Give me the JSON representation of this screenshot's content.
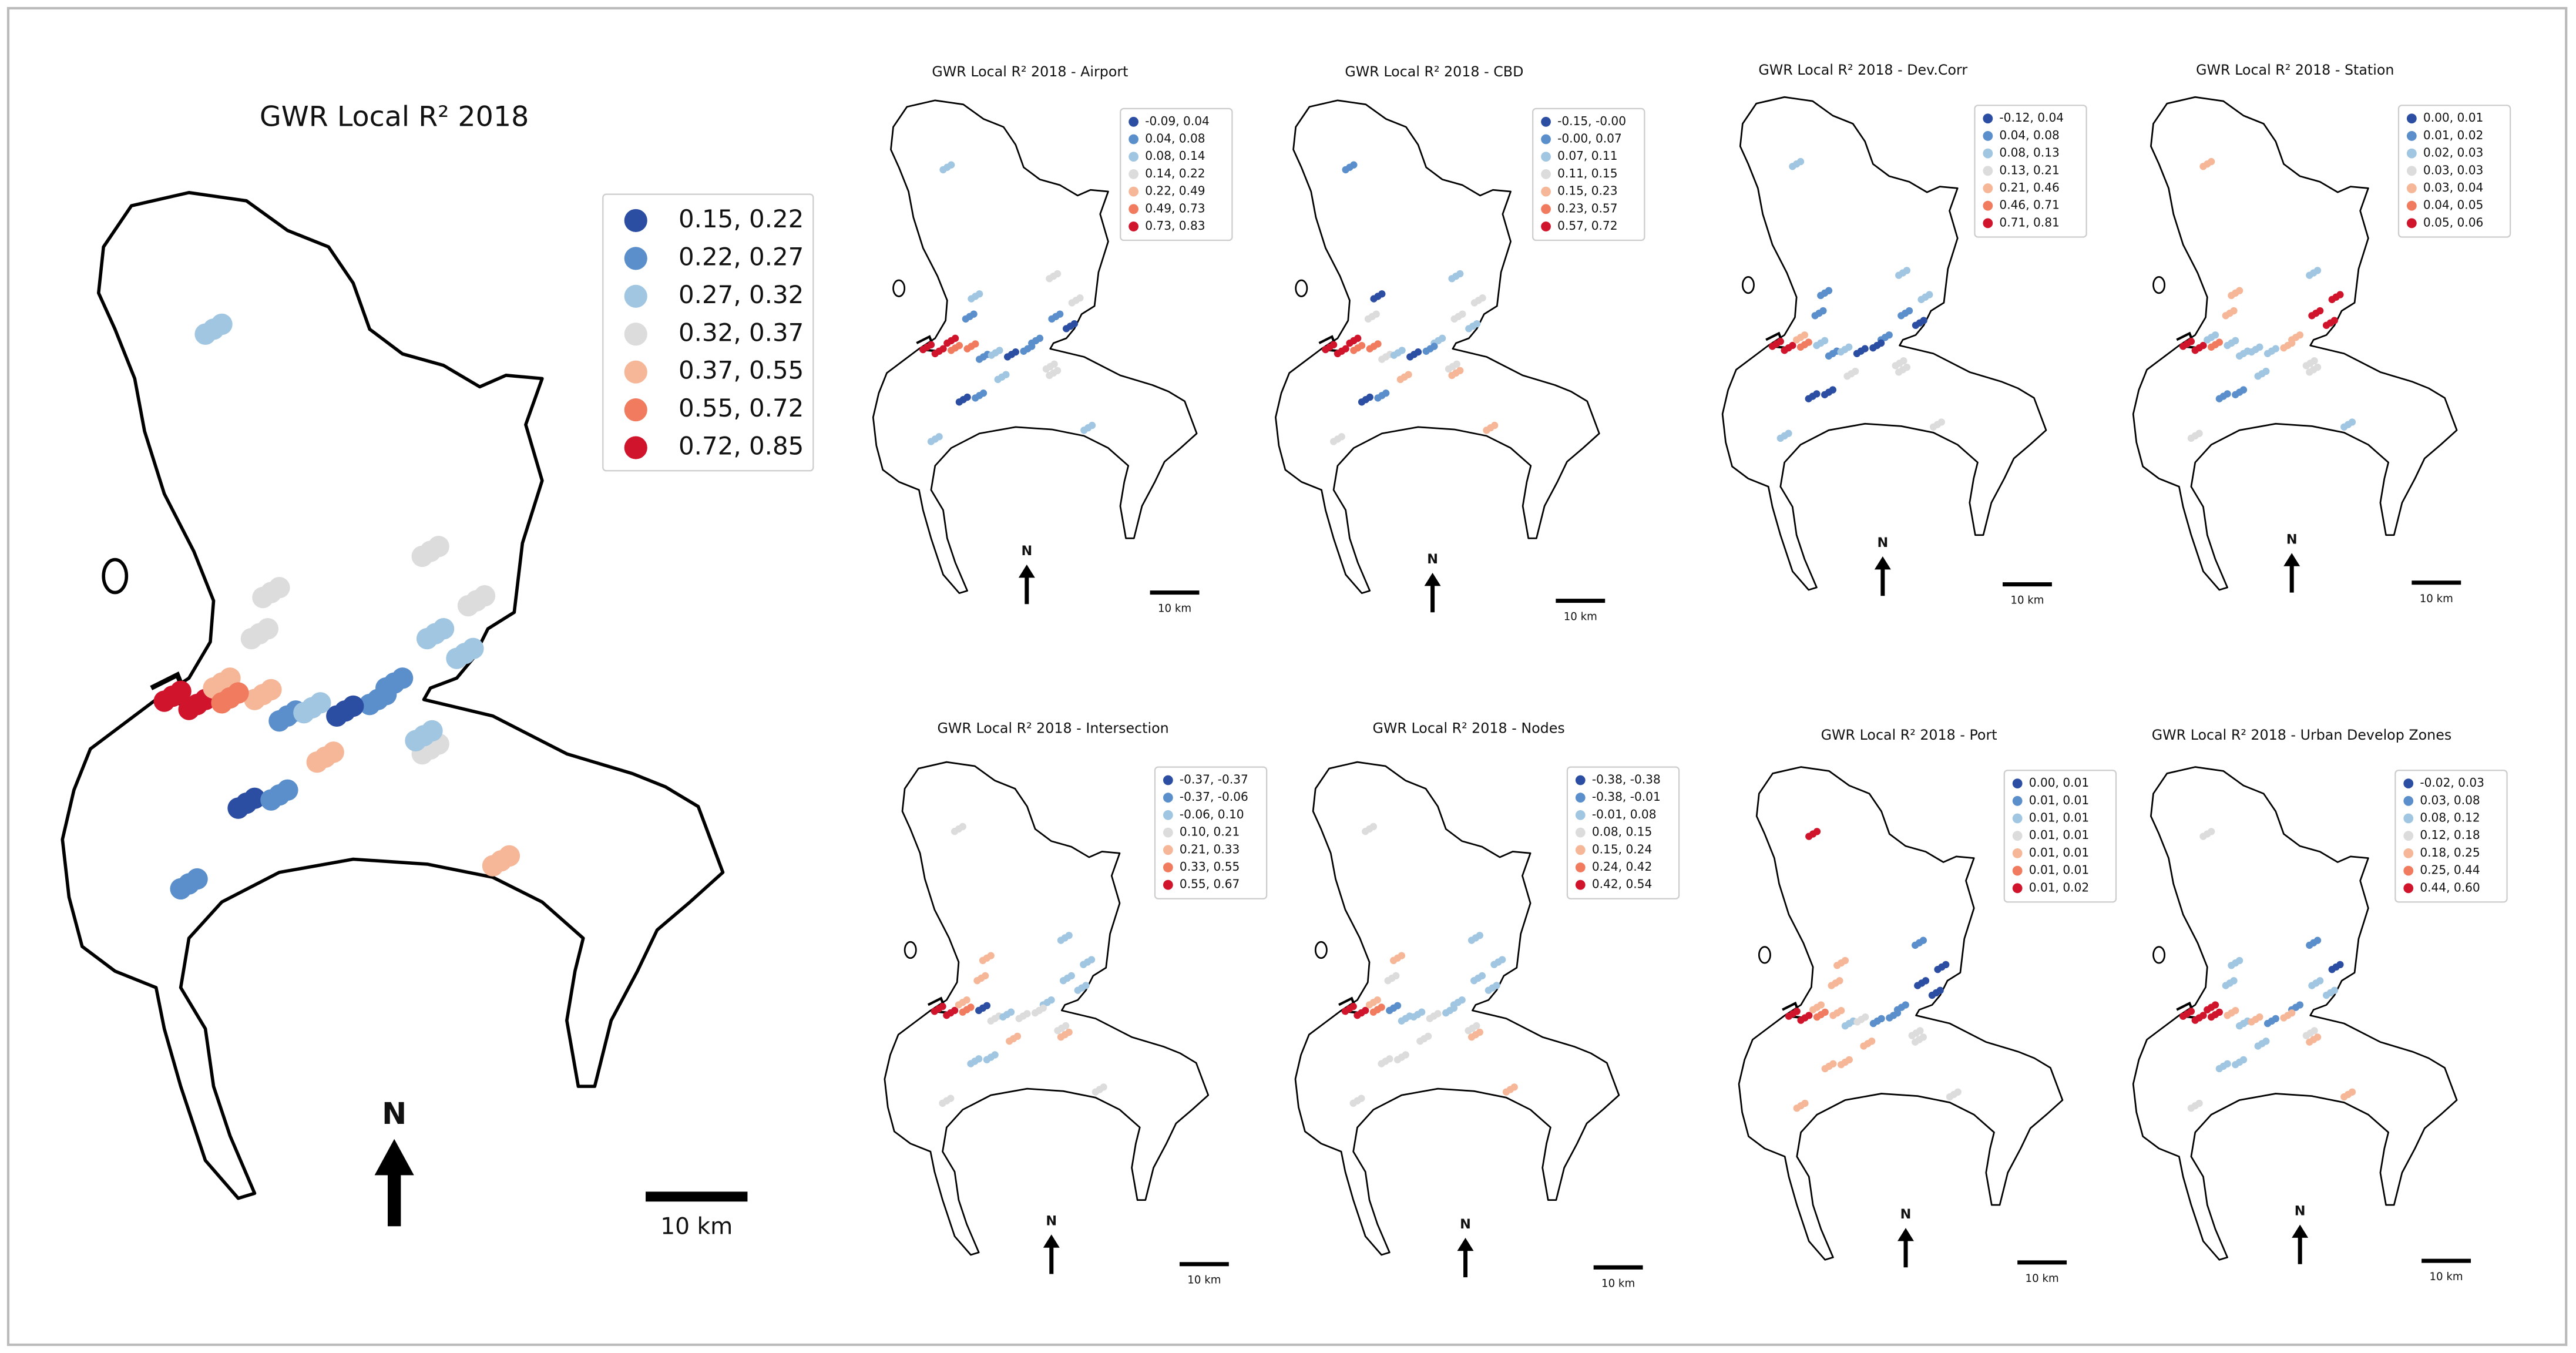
{
  "legend_colors": [
    "#2b4ea2",
    "#5b8fcc",
    "#a0c6e2",
    "#dcdcdc",
    "#f6b799",
    "#f07b5e",
    "#cf142b"
  ],
  "maps": [
    {
      "title": "GWR Local R² 2018",
      "legend": [
        "0.15, 0.22",
        "0.22, 0.27",
        "0.27, 0.32",
        "0.32, 0.37",
        "0.37, 0.55",
        "0.55, 0.72",
        "0.72, 0.85"
      ],
      "north": "N",
      "scale_label": "10 km"
    },
    {
      "title": "GWR Local R² 2018 - Airport",
      "legend": [
        "-0.09, 0.04",
        "0.04, 0.08",
        "0.08, 0.14",
        "0.14, 0.22",
        "0.22, 0.49",
        "0.49, 0.73",
        "0.73, 0.83"
      ],
      "north": "N",
      "scale_label": "10 km"
    },
    {
      "title": "GWR Local R² 2018 - CBD",
      "legend": [
        "-0.15, -0.00",
        "-0.00, 0.07",
        "0.07, 0.11",
        "0.11, 0.15",
        "0.15, 0.23",
        "0.23, 0.57",
        "0.57, 0.72"
      ],
      "north": "N",
      "scale_label": "10 km"
    },
    {
      "title": "GWR Local R² 2018 - Dev.Corr",
      "legend": [
        "-0.12, 0.04",
        "0.04, 0.08",
        "0.08, 0.13",
        "0.13, 0.21",
        "0.21, 0.46",
        "0.46, 0.71",
        "0.71, 0.81"
      ],
      "north": "N",
      "scale_label": "10 km"
    },
    {
      "title": "GWR Local R² 2018 - Station",
      "legend": [
        "0.00, 0.01",
        "0.01, 0.02",
        "0.02, 0.03",
        "0.03, 0.03",
        "0.03, 0.04",
        "0.04, 0.05",
        "0.05, 0.06"
      ],
      "north": "N",
      "scale_label": "10 km"
    },
    {
      "title": "GWR Local R² 2018 - Intersection",
      "legend": [
        "-0.37, -0.37",
        "-0.37, -0.06",
        "-0.06, 0.10",
        "0.10, 0.21",
        "0.21, 0.33",
        "0.33, 0.55",
        "0.55, 0.67"
      ],
      "north": "N",
      "scale_label": "10 km"
    },
    {
      "title": "GWR Local R² 2018 - Nodes",
      "legend": [
        "-0.38, -0.38",
        "-0.38, -0.01",
        "-0.01, 0.08",
        "0.08, 0.15",
        "0.15, 0.24",
        "0.24, 0.42",
        "0.42, 0.54"
      ],
      "north": "N",
      "scale_label": "10 km"
    },
    {
      "title": "GWR Local R² 2018 - Port",
      "legend": [
        "0.00, 0.01",
        "0.01, 0.01",
        "0.01, 0.01",
        "0.01, 0.01",
        "0.01, 0.01",
        "0.01, 0.01",
        "0.01, 0.02"
      ],
      "north": "N",
      "scale_label": "10 km"
    },
    {
      "title": "GWR Local R² 2018 - Urban Develop Zones",
      "legend": [
        "-0.02, 0.03",
        "0.03, 0.08",
        "0.08, 0.12",
        "0.12, 0.18",
        "0.18, 0.25",
        "0.25, 0.44",
        "0.44, 0.60"
      ],
      "north": "N",
      "scale_label": "10 km"
    }
  ]
}
